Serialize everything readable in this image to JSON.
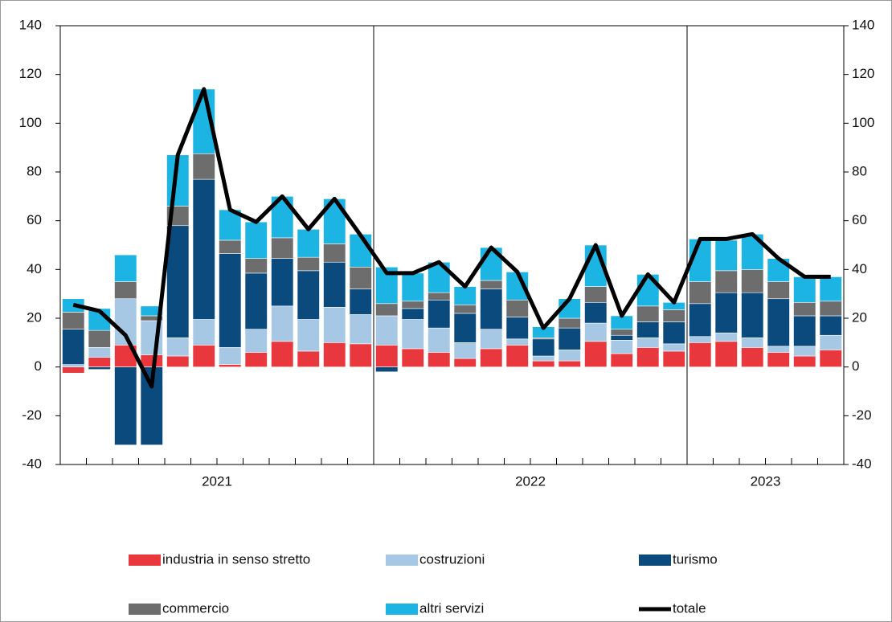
{
  "chart_data": {
    "type": "bar",
    "categories": [
      null,
      null,
      null,
      null,
      null,
      null,
      null,
      null,
      null,
      null,
      null,
      null,
      null,
      null,
      null,
      null,
      null,
      null,
      null,
      null,
      null,
      null,
      null,
      null,
      null,
      null,
      null,
      null,
      null,
      null
    ],
    "year_groups": [
      {
        "label": "2021",
        "span": 12
      },
      {
        "label": "2022",
        "span": 12
      },
      {
        "label": "2023",
        "span": 6
      }
    ],
    "ylim": [
      -40,
      140
    ],
    "yticks": [
      -40,
      -20,
      0,
      20,
      40,
      60,
      80,
      100,
      120,
      140
    ],
    "y2lim": [
      -40,
      140
    ],
    "y2ticks": [
      -40,
      -20,
      0,
      20,
      40,
      60,
      80,
      100,
      120,
      140
    ],
    "series": [
      {
        "name": "industria in senso stretto",
        "color": "#e8383d",
        "values": [
          -2.5,
          4,
          9,
          5,
          4.5,
          9,
          1,
          6,
          10.5,
          6.5,
          10,
          9.5,
          9,
          7.5,
          6,
          3.5,
          7.5,
          9,
          2.5,
          2.5,
          10.5,
          5.5,
          8,
          6.5,
          10,
          10.5,
          8,
          6,
          4.5,
          7
        ]
      },
      {
        "name": "costruzioni",
        "color": "#a7c8e5",
        "values": [
          1,
          4,
          19,
          14,
          7.5,
          10.5,
          7,
          9.5,
          14.5,
          13,
          14.5,
          12,
          12,
          12,
          10,
          6.5,
          8,
          2.5,
          2,
          4.5,
          7.5,
          5.5,
          4,
          3,
          2.5,
          3.5,
          4,
          2.5,
          4,
          6
        ]
      },
      {
        "name": "turismo",
        "color": "#0b4a7d",
        "values": [
          14.5,
          -1,
          -32,
          -32,
          46,
          57.5,
          38.5,
          23,
          19.5,
          20,
          18.5,
          10.5,
          -2,
          4.5,
          11.5,
          12,
          16.5,
          9,
          7,
          9,
          8.5,
          2,
          6.5,
          9,
          13.5,
          16.5,
          18.5,
          19.5,
          12.5,
          8
        ]
      },
      {
        "name": "commercio",
        "color": "#6d6d6d",
        "values": [
          7,
          7,
          7,
          2,
          8,
          10.5,
          5.5,
          6,
          8.5,
          5.5,
          7.5,
          9,
          5,
          3,
          3,
          3.5,
          3.5,
          7,
          0.5,
          4,
          6.5,
          2.5,
          6.5,
          5,
          9,
          9,
          9.5,
          7,
          5.5,
          6
        ]
      },
      {
        "name": "altri servizi",
        "color": "#1cb4e3",
        "values": [
          5.5,
          9,
          11,
          4,
          21,
          26.5,
          12.5,
          15,
          17,
          11.5,
          18.5,
          13.5,
          15,
          11.5,
          12.5,
          7.5,
          13.5,
          11.5,
          4.5,
          8,
          17,
          5.5,
          13,
          3,
          17.5,
          12.5,
          14.5,
          9.5,
          10.5,
          10
        ]
      },
      {
        "name": "totale",
        "type": "line",
        "color": "#000000",
        "values": [
          25.5,
          23,
          13,
          -8,
          87,
          114,
          64.5,
          59.5,
          70,
          56.5,
          69,
          54,
          38.5,
          38.5,
          43,
          33,
          49,
          39,
          16,
          28,
          50,
          21,
          38,
          26.5,
          52.5,
          52.5,
          54.5,
          44.5,
          37,
          37
        ]
      }
    ]
  }
}
